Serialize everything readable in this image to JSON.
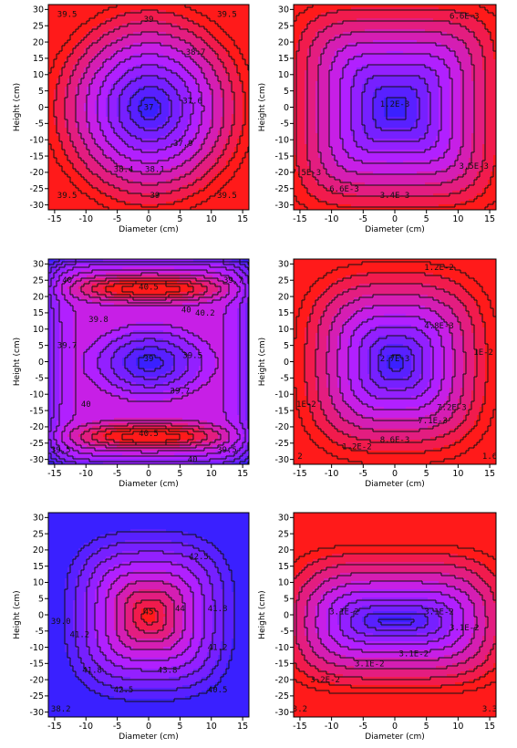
{
  "chart_data": [
    {
      "type": "contour",
      "xlabel": "Diameter (cm)",
      "ylabel": "Height (cm)",
      "xlim": [
        -16,
        16
      ],
      "ylim": [
        -31.5,
        31.5
      ],
      "xticks": [
        "-15",
        "-10",
        "-5",
        "0",
        "5",
        "10",
        "15"
      ],
      "yticks": [
        "-30",
        "-25",
        "-20",
        "-15",
        "-10",
        "-5",
        "0",
        "5",
        "10",
        "15",
        "20",
        "25",
        "30"
      ],
      "colors": {
        "low": "#3a20ff",
        "high": "#ff1a1a"
      },
      "pattern": "center-low",
      "contour_labels": [
        {
          "text": "39.5",
          "x": -13,
          "y": 28.5
        },
        {
          "text": "39",
          "x": 0,
          "y": 27
        },
        {
          "text": "39.5",
          "x": 12.5,
          "y": 28.5
        },
        {
          "text": "38.7",
          "x": 7.5,
          "y": 17
        },
        {
          "text": "37",
          "x": 0,
          "y": 0
        },
        {
          "text": "37.6",
          "x": 7,
          "y": 2
        },
        {
          "text": "37.9",
          "x": 5.5,
          "y": -11
        },
        {
          "text": "38.4",
          "x": -4,
          "y": -19
        },
        {
          "text": "38.1",
          "x": 1,
          "y": -19
        },
        {
          "text": "39.5",
          "x": -13,
          "y": -27
        },
        {
          "text": "39",
          "x": 1,
          "y": -27
        },
        {
          "text": "39.5",
          "x": 12.5,
          "y": -27
        }
      ]
    },
    {
      "type": "contour",
      "xlabel": "Diameter (cm)",
      "ylabel": "Height (cm)",
      "xlim": [
        -16,
        16
      ],
      "ylim": [
        -31.5,
        31.5
      ],
      "xticks": [
        "-15",
        "-10",
        "-5",
        "0",
        "5",
        "10",
        "15"
      ],
      "yticks": [
        "-30",
        "-25",
        "-20",
        "-15",
        "-10",
        "-5",
        "0",
        "5",
        "10",
        "15",
        "20",
        "25",
        "30"
      ],
      "colors": {
        "low": "#3a20ff",
        "high": "#ff1a1a"
      },
      "pattern": "center-low-square",
      "contour_labels": [
        {
          "text": "6.6E-3",
          "x": 11,
          "y": 28
        },
        {
          "text": "1.2E-3",
          "x": 0,
          "y": 1
        },
        {
          "text": "3.5E-3",
          "x": 12.5,
          "y": -18
        },
        {
          "text": "3.4E-3",
          "x": 0,
          "y": -27
        },
        {
          "text": "7.5E-3",
          "x": -14,
          "y": -20
        },
        {
          "text": "6.6E-3",
          "x": -8,
          "y": -25
        }
      ]
    },
    {
      "type": "contour",
      "xlabel": "Diameter (cm)",
      "ylabel": "Height (cm)",
      "xlim": [
        -16,
        16
      ],
      "ylim": [
        -31.5,
        31.5
      ],
      "xticks": [
        "-15",
        "-10",
        "-5",
        "0",
        "5",
        "10",
        "15"
      ],
      "yticks": [
        "-30",
        "-25",
        "-20",
        "-15",
        "-10",
        "-5",
        "0",
        "5",
        "10",
        "15",
        "20",
        "25",
        "30"
      ],
      "colors": {
        "low": "#3a20ff",
        "high": "#ff1a1a"
      },
      "pattern": "center-low-bands-high",
      "contour_labels": [
        {
          "text": "40",
          "x": -13,
          "y": 25
        },
        {
          "text": "40.5",
          "x": 0,
          "y": 23
        },
        {
          "text": "39.7",
          "x": 13.5,
          "y": 25
        },
        {
          "text": "40.2",
          "x": 9,
          "y": 15
        },
        {
          "text": "40",
          "x": 6,
          "y": 16
        },
        {
          "text": "39.8",
          "x": -8,
          "y": 13
        },
        {
          "text": "39.7",
          "x": -13,
          "y": 5
        },
        {
          "text": "39",
          "x": 0,
          "y": 1
        },
        {
          "text": "39.5",
          "x": 7,
          "y": 2
        },
        {
          "text": "39.7",
          "x": 5,
          "y": -9
        },
        {
          "text": "40",
          "x": -10,
          "y": -13
        },
        {
          "text": "40.5",
          "x": 0,
          "y": -22
        },
        {
          "text": "39.5",
          "x": -14,
          "y": -27
        },
        {
          "text": "39.5",
          "x": 12.5,
          "y": -27
        },
        {
          "text": "40",
          "x": 7,
          "y": -30
        }
      ]
    },
    {
      "type": "contour",
      "xlabel": "Diameter (cm)",
      "ylabel": "Height (cm)",
      "xlim": [
        -16,
        16
      ],
      "ylim": [
        -31.5,
        31.5
      ],
      "xticks": [
        "-15",
        "-10",
        "-5",
        "0",
        "5",
        "10",
        "15"
      ],
      "yticks": [
        "-30",
        "-25",
        "-20",
        "-15",
        "-10",
        "-5",
        "0",
        "5",
        "10",
        "15",
        "20",
        "25",
        "30"
      ],
      "colors": {
        "low": "#3a20ff",
        "high": "#ff1a1a"
      },
      "pattern": "center-low-round",
      "contour_labels": [
        {
          "text": "1.2E-2",
          "x": 7,
          "y": 29
        },
        {
          "text": "4.8E-3",
          "x": 7,
          "y": 11
        },
        {
          "text": "2.7E-3",
          "x": 0,
          "y": 1
        },
        {
          "text": "1E-2",
          "x": 14,
          "y": 3
        },
        {
          "text": "7.2E-3",
          "x": 9,
          "y": -14
        },
        {
          "text": "1E-2",
          "x": -14,
          "y": -13
        },
        {
          "text": "7.1E-3",
          "x": 6,
          "y": -18
        },
        {
          "text": "8.6E-3",
          "x": 0,
          "y": -24
        },
        {
          "text": "1.2E-2",
          "x": -6,
          "y": -26
        },
        {
          "text": "1.6",
          "x": 15,
          "y": -29
        },
        {
          "text": "2",
          "x": -15,
          "y": -29
        }
      ]
    },
    {
      "type": "contour",
      "xlabel": "Diameter (cm)",
      "ylabel": "Height (cm)",
      "xlim": [
        -16,
        16
      ],
      "ylim": [
        -31.5,
        31.5
      ],
      "xticks": [
        "-15",
        "-10",
        "-5",
        "0",
        "5",
        "10",
        "15"
      ],
      "yticks": [
        "-30",
        "-25",
        "-20",
        "-15",
        "-10",
        "-5",
        "0",
        "5",
        "10",
        "15",
        "20",
        "25",
        "30"
      ],
      "colors": {
        "low": "#3a20ff",
        "high": "#ff1a1a"
      },
      "pattern": "center-high",
      "contour_labels": [
        {
          "text": "42.5",
          "x": 8,
          "y": 18
        },
        {
          "text": "44",
          "x": 5,
          "y": 2
        },
        {
          "text": "45",
          "x": 0,
          "y": 1
        },
        {
          "text": "41.8",
          "x": 11,
          "y": 2
        },
        {
          "text": "41.2",
          "x": -11,
          "y": -6
        },
        {
          "text": "39.0",
          "x": -14,
          "y": -2
        },
        {
          "text": "41.2",
          "x": 11,
          "y": -10
        },
        {
          "text": "43.8",
          "x": 3,
          "y": -17
        },
        {
          "text": "41.8",
          "x": -9,
          "y": -17
        },
        {
          "text": "42.5",
          "x": -4,
          "y": -23
        },
        {
          "text": "40.5",
          "x": 11,
          "y": -23
        },
        {
          "text": "38.2",
          "x": -14,
          "y": -29
        }
      ]
    },
    {
      "type": "contour",
      "xlabel": "Diameter (cm)",
      "ylabel": "Height (cm)",
      "xlim": [
        -16,
        16
      ],
      "ylim": [
        -31.5,
        31.5
      ],
      "xticks": [
        "-15",
        "-10",
        "-5",
        "0",
        "5",
        "10",
        "15"
      ],
      "yticks": [
        "-30",
        "-25",
        "-20",
        "-15",
        "-10",
        "-5",
        "0",
        "5",
        "10",
        "15",
        "20",
        "25",
        "30"
      ],
      "colors": {
        "low": "#3a20ff",
        "high": "#ff1a1a"
      },
      "pattern": "center-low-wide",
      "contour_labels": [
        {
          "text": "3.1E-2",
          "x": -8,
          "y": 1
        },
        {
          "text": "3.1E-2",
          "x": 7,
          "y": 1
        },
        {
          "text": "3.1E-2",
          "x": 11,
          "y": -4
        },
        {
          "text": "3.1E-2",
          "x": 3,
          "y": -12
        },
        {
          "text": "3.1E-2",
          "x": -4,
          "y": -15
        },
        {
          "text": "3.2E-2",
          "x": -11,
          "y": -20
        },
        {
          "text": "3.2",
          "x": -15,
          "y": -29
        },
        {
          "text": "3.3",
          "x": 15,
          "y": -29
        }
      ]
    }
  ]
}
